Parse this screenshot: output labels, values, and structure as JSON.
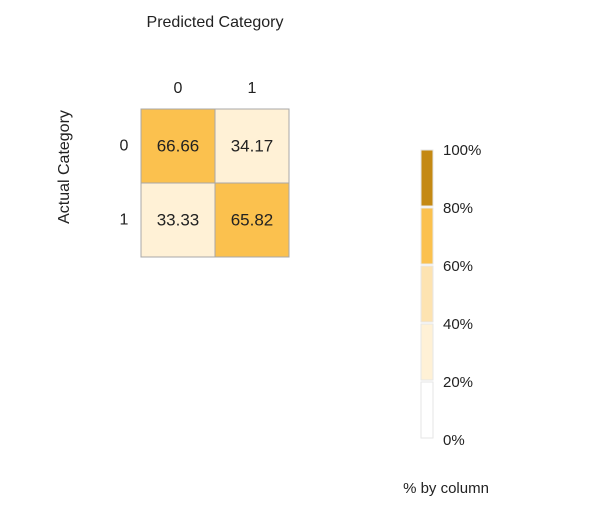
{
  "chart_data": {
    "type": "heatmap",
    "title": "Predicted Category",
    "xlabel": "Predicted Category",
    "ylabel": "Actual Category",
    "x_categories": [
      "0",
      "1"
    ],
    "y_categories": [
      "0",
      "1"
    ],
    "values": [
      [
        66.66,
        34.17
      ],
      [
        33.33,
        65.82
      ]
    ],
    "cell_labels": [
      [
        "66.66",
        "34.17"
      ],
      [
        "33.33",
        "65.82"
      ]
    ],
    "colorbar": {
      "title": "% by column",
      "ticks": [
        "100%",
        "80%",
        "60%",
        "40%",
        "20%",
        "0%"
      ],
      "range": [
        0,
        100
      ],
      "bins": [
        {
          "from": 0,
          "to": 20,
          "color": "#ffffff"
        },
        {
          "from": 20,
          "to": 40,
          "color": "#fff1d6"
        },
        {
          "from": 40,
          "to": 60,
          "color": "#fde3b1"
        },
        {
          "from": 60,
          "to": 80,
          "color": "#fbc14e"
        },
        {
          "from": 80,
          "to": 100,
          "color": "#c48913"
        }
      ]
    },
    "legend_position": "right"
  }
}
